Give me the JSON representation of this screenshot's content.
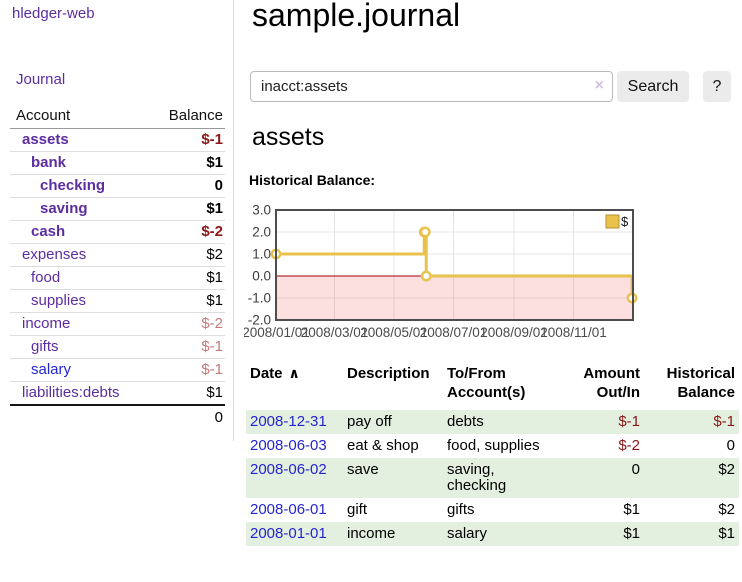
{
  "app": {
    "brand": "hledger-web",
    "nav_journal": "Journal"
  },
  "sidebar": {
    "table": {
      "col_account": "Account",
      "col_balance": "Balance"
    },
    "accounts": [
      {
        "name": "assets",
        "level": 0,
        "bold": true,
        "name_style": "a-purple",
        "balance": "$-1",
        "balance_style": "b-neg-strong"
      },
      {
        "name": "bank",
        "level": 1,
        "bold": true,
        "name_style": "a-purple",
        "balance": "$1",
        "balance_style": "b-pos"
      },
      {
        "name": "checking",
        "level": 2,
        "bold": true,
        "name_style": "a-purple",
        "balance": "0",
        "balance_style": "b-pos"
      },
      {
        "name": "saving",
        "level": 2,
        "bold": true,
        "name_style": "a-purple",
        "balance": "$1",
        "balance_style": "b-pos"
      },
      {
        "name": "cash",
        "level": 1,
        "bold": true,
        "name_style": "a-purple",
        "balance": "$-2",
        "balance_style": "b-neg-strong"
      },
      {
        "name": "expenses",
        "level": 0,
        "bold": false,
        "name_style": "a-purple",
        "balance": "$2",
        "balance_style": "b-pos"
      },
      {
        "name": "food",
        "level": 1,
        "bold": false,
        "name_style": "a-purple",
        "balance": "$1",
        "balance_style": "b-pos"
      },
      {
        "name": "supplies",
        "level": 1,
        "bold": false,
        "name_style": "a-purple",
        "balance": "$1",
        "balance_style": "b-pos"
      },
      {
        "name": "income",
        "level": 0,
        "bold": false,
        "name_style": "a-purple",
        "balance": "$-2",
        "balance_style": "b-neg-soft"
      },
      {
        "name": "gifts",
        "level": 1,
        "bold": false,
        "name_style": "a-purple",
        "balance": "$-1",
        "balance_style": "b-neg-soft"
      },
      {
        "name": "salary",
        "level": 1,
        "bold": false,
        "name_style": "a-blue",
        "balance": "$-1",
        "balance_style": "b-neg-soft"
      },
      {
        "name": "liabilities:debts",
        "level": 0,
        "bold": false,
        "name_style": "a-purple",
        "balance": "$1",
        "balance_style": "b-pos"
      }
    ],
    "total": "0"
  },
  "header": {
    "title": "sample.journal"
  },
  "search": {
    "value": "inacct:assets",
    "clear_icon": "×",
    "button": "Search",
    "help_button": "?"
  },
  "account_page": {
    "title": "assets",
    "chart_label": "Historical Balance:"
  },
  "chart_data": {
    "type": "line",
    "title": "Historical Balance",
    "step": true,
    "x_range": [
      "2008-01-01",
      "2009-01-01"
    ],
    "ylim": [
      -2,
      3
    ],
    "series": [
      {
        "name": "$",
        "color": "#e8c24a",
        "points": [
          [
            "2008-01-01",
            1
          ],
          [
            "2008-06-01",
            2
          ],
          [
            "2008-06-02",
            2
          ],
          [
            "2008-06-03",
            0
          ],
          [
            "2008-12-31",
            -1
          ]
        ]
      }
    ],
    "yticks": [
      {
        "v": 3,
        "label": "3.0"
      },
      {
        "v": 2,
        "label": "2.0"
      },
      {
        "v": 1,
        "label": "1.0"
      },
      {
        "v": 0,
        "label": "0.0"
      },
      {
        "v": -1,
        "label": "-1.0"
      },
      {
        "v": -2,
        "label": "-2.0"
      }
    ],
    "xticks": [
      {
        "d": "2008-01-01",
        "label": "2008/01/01"
      },
      {
        "d": "2008-03-01",
        "label": "2008/03/01"
      },
      {
        "d": "2008-05-01",
        "label": "2008/05/01"
      },
      {
        "d": "2008-07-01",
        "label": "2008/07/01"
      },
      {
        "d": "2008-09-01",
        "label": "2008/09/01"
      },
      {
        "d": "2008-11-01",
        "label": "2008/11/01"
      }
    ],
    "grid": true,
    "legend_position": "top-right",
    "negative_region_fill": "rgba(240,80,80,0.18)",
    "zero_line_color": "#a00000"
  },
  "register": {
    "columns": [
      "Date",
      "Description",
      "To/From Account(s)",
      "Amount Out/In",
      "Historical Balance"
    ],
    "sort_icon": "∧",
    "rows": [
      {
        "date": "2008-12-31",
        "description": "pay off",
        "accounts": "debts",
        "amount": "$-1",
        "amount_negative": true,
        "balance": "$-1",
        "balance_negative": true
      },
      {
        "date": "2008-06-03",
        "description": "eat & shop",
        "accounts": "food, supplies",
        "amount": "$-2",
        "amount_negative": true,
        "balance": "0",
        "balance_negative": false
      },
      {
        "date": "2008-06-02",
        "description": "save",
        "accounts": "saving, checking",
        "amount": "0",
        "amount_negative": false,
        "balance": "$2",
        "balance_negative": false
      },
      {
        "date": "2008-06-01",
        "description": "gift",
        "accounts": "gifts",
        "amount": "$1",
        "amount_negative": false,
        "balance": "$2",
        "balance_negative": false
      },
      {
        "date": "2008-01-01",
        "description": "income",
        "accounts": "salary",
        "amount": "$1",
        "amount_negative": false,
        "balance": "$1",
        "balance_negative": false
      }
    ]
  }
}
